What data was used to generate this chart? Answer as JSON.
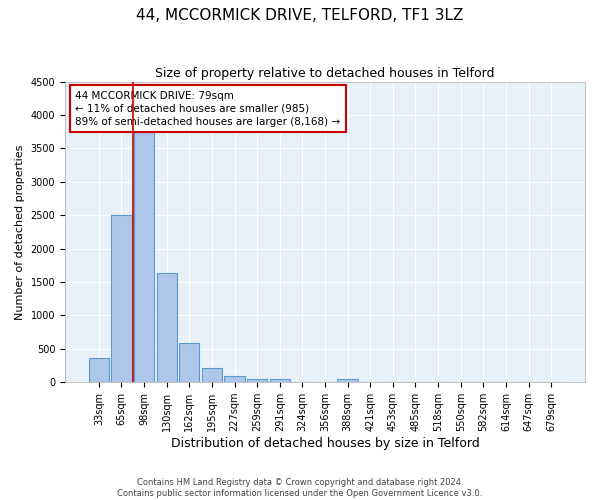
{
  "title": "44, MCCORMICK DRIVE, TELFORD, TF1 3LZ",
  "subtitle": "Size of property relative to detached houses in Telford",
  "xlabel": "Distribution of detached houses by size in Telford",
  "ylabel": "Number of detached properties",
  "categories": [
    "33sqm",
    "65sqm",
    "98sqm",
    "130sqm",
    "162sqm",
    "195sqm",
    "227sqm",
    "259sqm",
    "291sqm",
    "324sqm",
    "356sqm",
    "388sqm",
    "421sqm",
    "453sqm",
    "485sqm",
    "518sqm",
    "550sqm",
    "582sqm",
    "614sqm",
    "647sqm",
    "679sqm"
  ],
  "values": [
    360,
    2500,
    3750,
    1640,
    590,
    220,
    100,
    55,
    50,
    0,
    0,
    55,
    0,
    0,
    0,
    0,
    0,
    0,
    0,
    0,
    0
  ],
  "bar_color": "#aec6e8",
  "bar_edge_color": "#5b9bd5",
  "background_color": "#e8f0f8",
  "grid_color": "#ffffff",
  "vline_x": 1.5,
  "vline_color": "#cc0000",
  "annotation_text": "44 MCCORMICK DRIVE: 79sqm\n← 11% of detached houses are smaller (985)\n89% of semi-detached houses are larger (8,168) →",
  "annotation_box_color": "#cc0000",
  "ylim": [
    0,
    4500
  ],
  "yticks": [
    0,
    500,
    1000,
    1500,
    2000,
    2500,
    3000,
    3500,
    4000,
    4500
  ],
  "footer": "Contains HM Land Registry data © Crown copyright and database right 2024.\nContains public sector information licensed under the Open Government Licence v3.0.",
  "title_fontsize": 11,
  "subtitle_fontsize": 9,
  "xlabel_fontsize": 9,
  "ylabel_fontsize": 8,
  "tick_fontsize": 7,
  "annotation_fontsize": 7.5,
  "footer_fontsize": 6
}
